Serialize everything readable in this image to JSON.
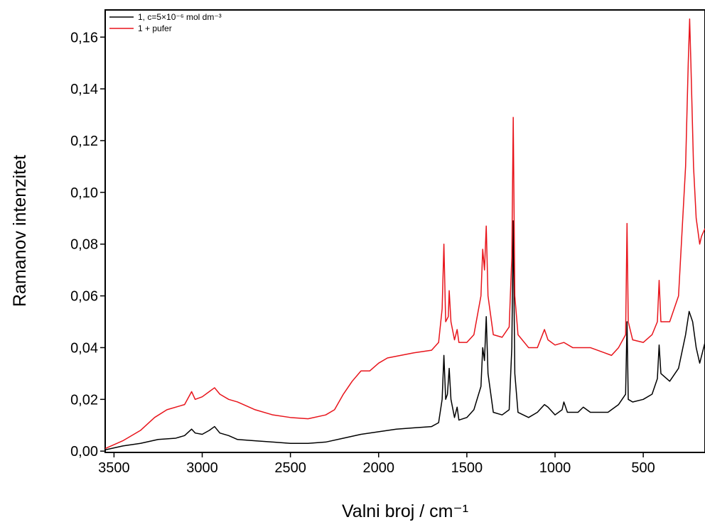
{
  "chart_data": {
    "type": "line",
    "xlabel": "Valni broj / cm⁻¹",
    "ylabel": "Ramanov intenzitet",
    "xlim": [
      3550,
      150
    ],
    "ylim": [
      -0.0005,
      0.1705
    ],
    "xticks": [
      3500,
      3000,
      2500,
      2000,
      1500,
      1000,
      500
    ],
    "yticks": [
      {
        "value": 0,
        "label": "0,00"
      },
      {
        "value": 0.02,
        "label": "0,02"
      },
      {
        "value": 0.04,
        "label": "0,04"
      },
      {
        "value": 0.06,
        "label": "0,06"
      },
      {
        "value": 0.08,
        "label": "0,08"
      },
      {
        "value": 0.1,
        "label": "0,10"
      },
      {
        "value": 0.12,
        "label": "0,12"
      },
      {
        "value": 0.14,
        "label": "0,14"
      },
      {
        "value": 0.16,
        "label": "0,16"
      }
    ],
    "legend": "top-left",
    "series": [
      {
        "name": "1, c=5×10⁻⁶ mol dm⁻³",
        "color": "#000000",
        "x": [
          3550,
          3450,
          3350,
          3250,
          3150,
          3100,
          3060,
          3040,
          3000,
          2960,
          2930,
          2900,
          2850,
          2800,
          2700,
          2600,
          2500,
          2400,
          2300,
          2200,
          2100,
          2000,
          1900,
          1800,
          1700,
          1660,
          1640,
          1630,
          1620,
          1610,
          1600,
          1590,
          1570,
          1555,
          1545,
          1500,
          1460,
          1420,
          1410,
          1400,
          1390,
          1380,
          1350,
          1300,
          1260,
          1245,
          1237,
          1228,
          1210,
          1150,
          1100,
          1060,
          1040,
          1000,
          960,
          950,
          930,
          870,
          840,
          800,
          700,
          640,
          600,
          592,
          585,
          560,
          500,
          450,
          420,
          410,
          400,
          350,
          300,
          260,
          240,
          220,
          200,
          180,
          150
        ],
        "values": [
          0.0005,
          0.002,
          0.003,
          0.0045,
          0.005,
          0.006,
          0.0085,
          0.007,
          0.0065,
          0.008,
          0.0095,
          0.007,
          0.006,
          0.0045,
          0.004,
          0.0035,
          0.003,
          0.003,
          0.0035,
          0.005,
          0.0065,
          0.0075,
          0.0085,
          0.009,
          0.0095,
          0.011,
          0.02,
          0.037,
          0.02,
          0.022,
          0.032,
          0.02,
          0.013,
          0.017,
          0.012,
          0.013,
          0.016,
          0.025,
          0.04,
          0.035,
          0.052,
          0.03,
          0.015,
          0.014,
          0.016,
          0.04,
          0.089,
          0.03,
          0.015,
          0.013,
          0.015,
          0.018,
          0.017,
          0.014,
          0.016,
          0.019,
          0.015,
          0.015,
          0.017,
          0.015,
          0.015,
          0.018,
          0.022,
          0.05,
          0.02,
          0.019,
          0.02,
          0.022,
          0.028,
          0.041,
          0.03,
          0.027,
          0.032,
          0.045,
          0.054,
          0.05,
          0.04,
          0.034,
          0.042
        ]
      },
      {
        "name": "1 + pufer",
        "color": "#e8141b",
        "x": [
          3550,
          3450,
          3350,
          3270,
          3200,
          3100,
          3060,
          3040,
          3000,
          2960,
          2930,
          2900,
          2850,
          2800,
          2700,
          2600,
          2500,
          2400,
          2300,
          2250,
          2200,
          2150,
          2100,
          2050,
          2000,
          1950,
          1800,
          1700,
          1660,
          1640,
          1630,
          1620,
          1605,
          1600,
          1590,
          1570,
          1555,
          1545,
          1500,
          1460,
          1420,
          1410,
          1400,
          1390,
          1380,
          1350,
          1300,
          1260,
          1245,
          1237,
          1228,
          1210,
          1150,
          1100,
          1060,
          1040,
          1000,
          950,
          900,
          800,
          720,
          680,
          640,
          600,
          592,
          585,
          560,
          500,
          450,
          420,
          410,
          400,
          350,
          300,
          260,
          245,
          237,
          230,
          215,
          200,
          180,
          170,
          150
        ],
        "values": [
          0.001,
          0.004,
          0.008,
          0.013,
          0.016,
          0.018,
          0.023,
          0.02,
          0.021,
          0.023,
          0.0245,
          0.022,
          0.02,
          0.019,
          0.016,
          0.014,
          0.013,
          0.0125,
          0.014,
          0.016,
          0.022,
          0.027,
          0.031,
          0.031,
          0.034,
          0.036,
          0.038,
          0.039,
          0.042,
          0.055,
          0.08,
          0.05,
          0.052,
          0.062,
          0.05,
          0.043,
          0.047,
          0.042,
          0.042,
          0.045,
          0.06,
          0.078,
          0.07,
          0.087,
          0.06,
          0.045,
          0.044,
          0.048,
          0.075,
          0.129,
          0.06,
          0.045,
          0.04,
          0.04,
          0.047,
          0.043,
          0.041,
          0.042,
          0.04,
          0.04,
          0.038,
          0.037,
          0.04,
          0.045,
          0.088,
          0.05,
          0.043,
          0.042,
          0.045,
          0.05,
          0.066,
          0.05,
          0.05,
          0.06,
          0.11,
          0.15,
          0.167,
          0.15,
          0.11,
          0.09,
          0.08,
          0.083,
          0.086
        ]
      }
    ]
  }
}
